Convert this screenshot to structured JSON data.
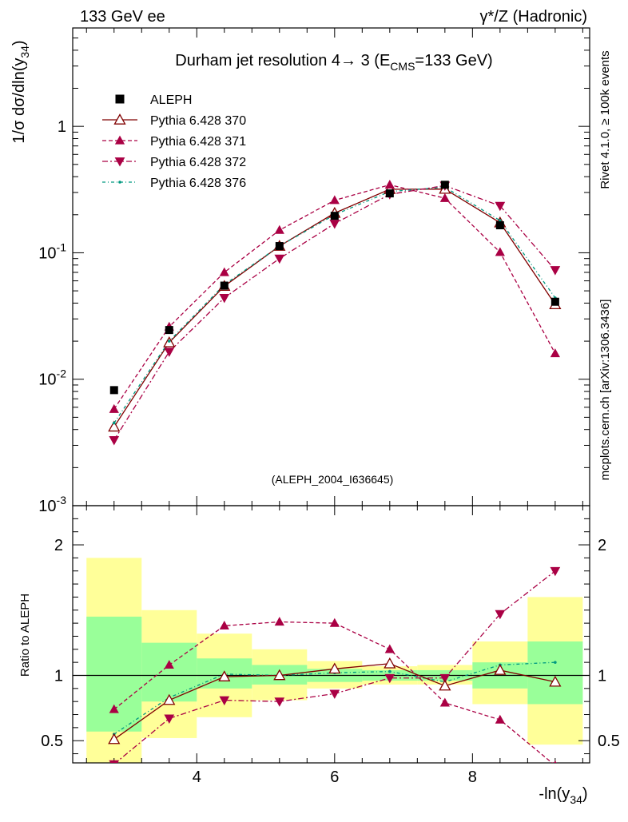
{
  "header": {
    "left_label": "133 GeV ee",
    "right_label": "γ*/Z (Hadronic)"
  },
  "plot_title": "Durham jet resolution 4→ 3 (E_CMS=133 GeV)",
  "side_labels": {
    "rivet": "Rivet 4.1.0, ≥ 100k events",
    "mcplots": "mcplots.cern.ch [arXiv:1306.3436]"
  },
  "analysis_tag": "(ALEPH_2004_I636645)",
  "chart_data": [
    {
      "type": "scatter",
      "panel": "main",
      "ylabel": "1/σ dσ/dln(y_34)",
      "yscale": "log",
      "ylim": [
        0.001,
        6
      ],
      "xlim": [
        2.2,
        9.7
      ],
      "ytick_labels": [
        "10^-3",
        "10^-2",
        "10^-1",
        "1"
      ],
      "legend_position": "top-left",
      "bins": [
        2.4,
        3.2,
        4.0,
        4.8,
        5.6,
        6.4,
        7.2,
        8.0,
        8.8,
        9.6
      ],
      "x": [
        2.8,
        3.6,
        4.4,
        5.2,
        6.0,
        6.8,
        7.6,
        8.4,
        9.2
      ],
      "series": [
        {
          "name": "ALEPH",
          "style": "data",
          "color": "#000000",
          "values": [
            0.0082,
            0.0245,
            0.055,
            0.113,
            0.196,
            0.295,
            0.345,
            0.165,
            0.041
          ]
        },
        {
          "name": "Pythia 6.428 370",
          "style": "solid-open-triangle-up",
          "color": "#800000",
          "values": [
            0.0042,
            0.0195,
            0.0545,
            0.113,
            0.206,
            0.318,
            0.319,
            0.173,
            0.039
          ]
        },
        {
          "name": "Pythia 6.428 371",
          "style": "dashed-triangle-up",
          "color": "#aa0044",
          "values": [
            0.0058,
            0.026,
            0.07,
            0.151,
            0.26,
            0.345,
            0.27,
            0.101,
            0.016
          ]
        },
        {
          "name": "Pythia 6.428 372",
          "style": "dashdot-triangle-down",
          "color": "#aa0044",
          "values": [
            0.0033,
            0.0165,
            0.044,
            0.09,
            0.17,
            0.29,
            0.34,
            0.235,
            0.073
          ]
        },
        {
          "name": "Pythia 6.428 376",
          "style": "dashdot-dot",
          "color": "#009980",
          "values": [
            0.0045,
            0.02,
            0.056,
            0.113,
            0.2,
            0.305,
            0.33,
            0.18,
            0.044
          ]
        }
      ]
    },
    {
      "type": "scatter",
      "panel": "ratio",
      "ylabel": "Ratio to ALEPH",
      "xlabel": "-ln(y_34)",
      "ylim": [
        0.33,
        2.3
      ],
      "xlim": [
        2.2,
        9.7
      ],
      "xtick_labels": [
        "4",
        "6",
        "8"
      ],
      "ytick_labels": [
        "0.5",
        "1",
        "2"
      ],
      "x": [
        2.8,
        3.6,
        4.4,
        5.2,
        6.0,
        6.8,
        7.6,
        8.4,
        9.2
      ],
      "uncertainty_bands": {
        "bins": [
          2.4,
          3.2,
          4.0,
          4.8,
          5.6,
          6.4,
          7.2,
          8.0,
          8.8,
          9.6
        ],
        "inner_green": [
          [
            0.57,
            1.45
          ],
          [
            0.8,
            1.25
          ],
          [
            0.9,
            1.13
          ],
          [
            0.93,
            1.08
          ],
          [
            0.95,
            1.05
          ],
          [
            0.96,
            1.04
          ],
          [
            0.96,
            1.04
          ],
          [
            0.9,
            1.1
          ],
          [
            0.78,
            1.26
          ]
        ],
        "outer_yellow": [
          [
            0.33,
            1.9
          ],
          [
            0.52,
            1.5
          ],
          [
            0.68,
            1.32
          ],
          [
            0.81,
            1.2
          ],
          [
            0.9,
            1.11
          ],
          [
            0.93,
            1.07
          ],
          [
            0.93,
            1.08
          ],
          [
            0.78,
            1.26
          ],
          [
            0.47,
            1.6
          ]
        ]
      },
      "series": [
        {
          "name": "Pythia 6.428 370",
          "values": [
            0.51,
            0.81,
            0.99,
            1.0,
            1.05,
            1.09,
            0.92,
            1.04,
            0.95
          ]
        },
        {
          "name": "Pythia 6.428 371",
          "values": [
            0.74,
            1.08,
            1.38,
            1.41,
            1.4,
            1.2,
            0.79,
            0.66,
            0.31
          ]
        },
        {
          "name": "Pythia 6.428 372",
          "values": [
            0.32,
            0.67,
            0.81,
            0.8,
            0.86,
            0.98,
            0.98,
            1.47,
            1.8
          ]
        },
        {
          "name": "Pythia 6.428 376",
          "values": [
            0.55,
            0.83,
            1.01,
            1.0,
            1.02,
            1.03,
            0.95,
            1.08,
            1.1
          ]
        }
      ]
    }
  ]
}
